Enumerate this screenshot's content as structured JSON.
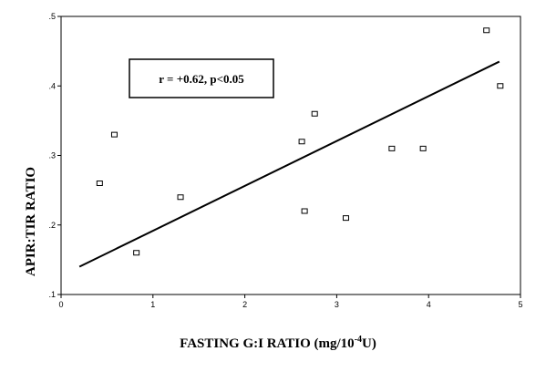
{
  "chart_data": {
    "type": "scatter",
    "title": "",
    "xlabel_main": "FASTING G:I RATIO (mg/10",
    "xlabel_sup": "-4",
    "xlabel_tail": "U)",
    "ylabel": "APIR:TIR RATIO",
    "xlim": [
      0,
      5
    ],
    "ylim": [
      0.1,
      0.5
    ],
    "xticks": [
      {
        "value": 0,
        "label": "0"
      },
      {
        "value": 1,
        "label": "1"
      },
      {
        "value": 2,
        "label": "2"
      },
      {
        "value": 3,
        "label": "3"
      },
      {
        "value": 4,
        "label": "4"
      },
      {
        "value": 5,
        "label": "5"
      }
    ],
    "yticks": [
      {
        "value": 0.1,
        "label": ".1"
      },
      {
        "value": 0.2,
        "label": ".2"
      },
      {
        "value": 0.3,
        "label": ".3"
      },
      {
        "value": 0.4,
        "label": ".4"
      },
      {
        "value": 0.5,
        "label": ".5"
      }
    ],
    "points": [
      {
        "x": 0.42,
        "y": 0.26
      },
      {
        "x": 0.58,
        "y": 0.33
      },
      {
        "x": 0.82,
        "y": 0.16
      },
      {
        "x": 1.3,
        "y": 0.24
      },
      {
        "x": 2.62,
        "y": 0.32
      },
      {
        "x": 2.65,
        "y": 0.22
      },
      {
        "x": 2.76,
        "y": 0.36
      },
      {
        "x": 3.1,
        "y": 0.21
      },
      {
        "x": 3.6,
        "y": 0.31
      },
      {
        "x": 3.94,
        "y": 0.31
      },
      {
        "x": 4.63,
        "y": 0.48
      },
      {
        "x": 4.78,
        "y": 0.4
      }
    ],
    "regression": {
      "x1": 0.2,
      "y1": 0.14,
      "x2": 4.77,
      "y2": 0.435
    },
    "annotation": "r = +0.62, p<0.05",
    "grid": false,
    "legend": "none"
  }
}
